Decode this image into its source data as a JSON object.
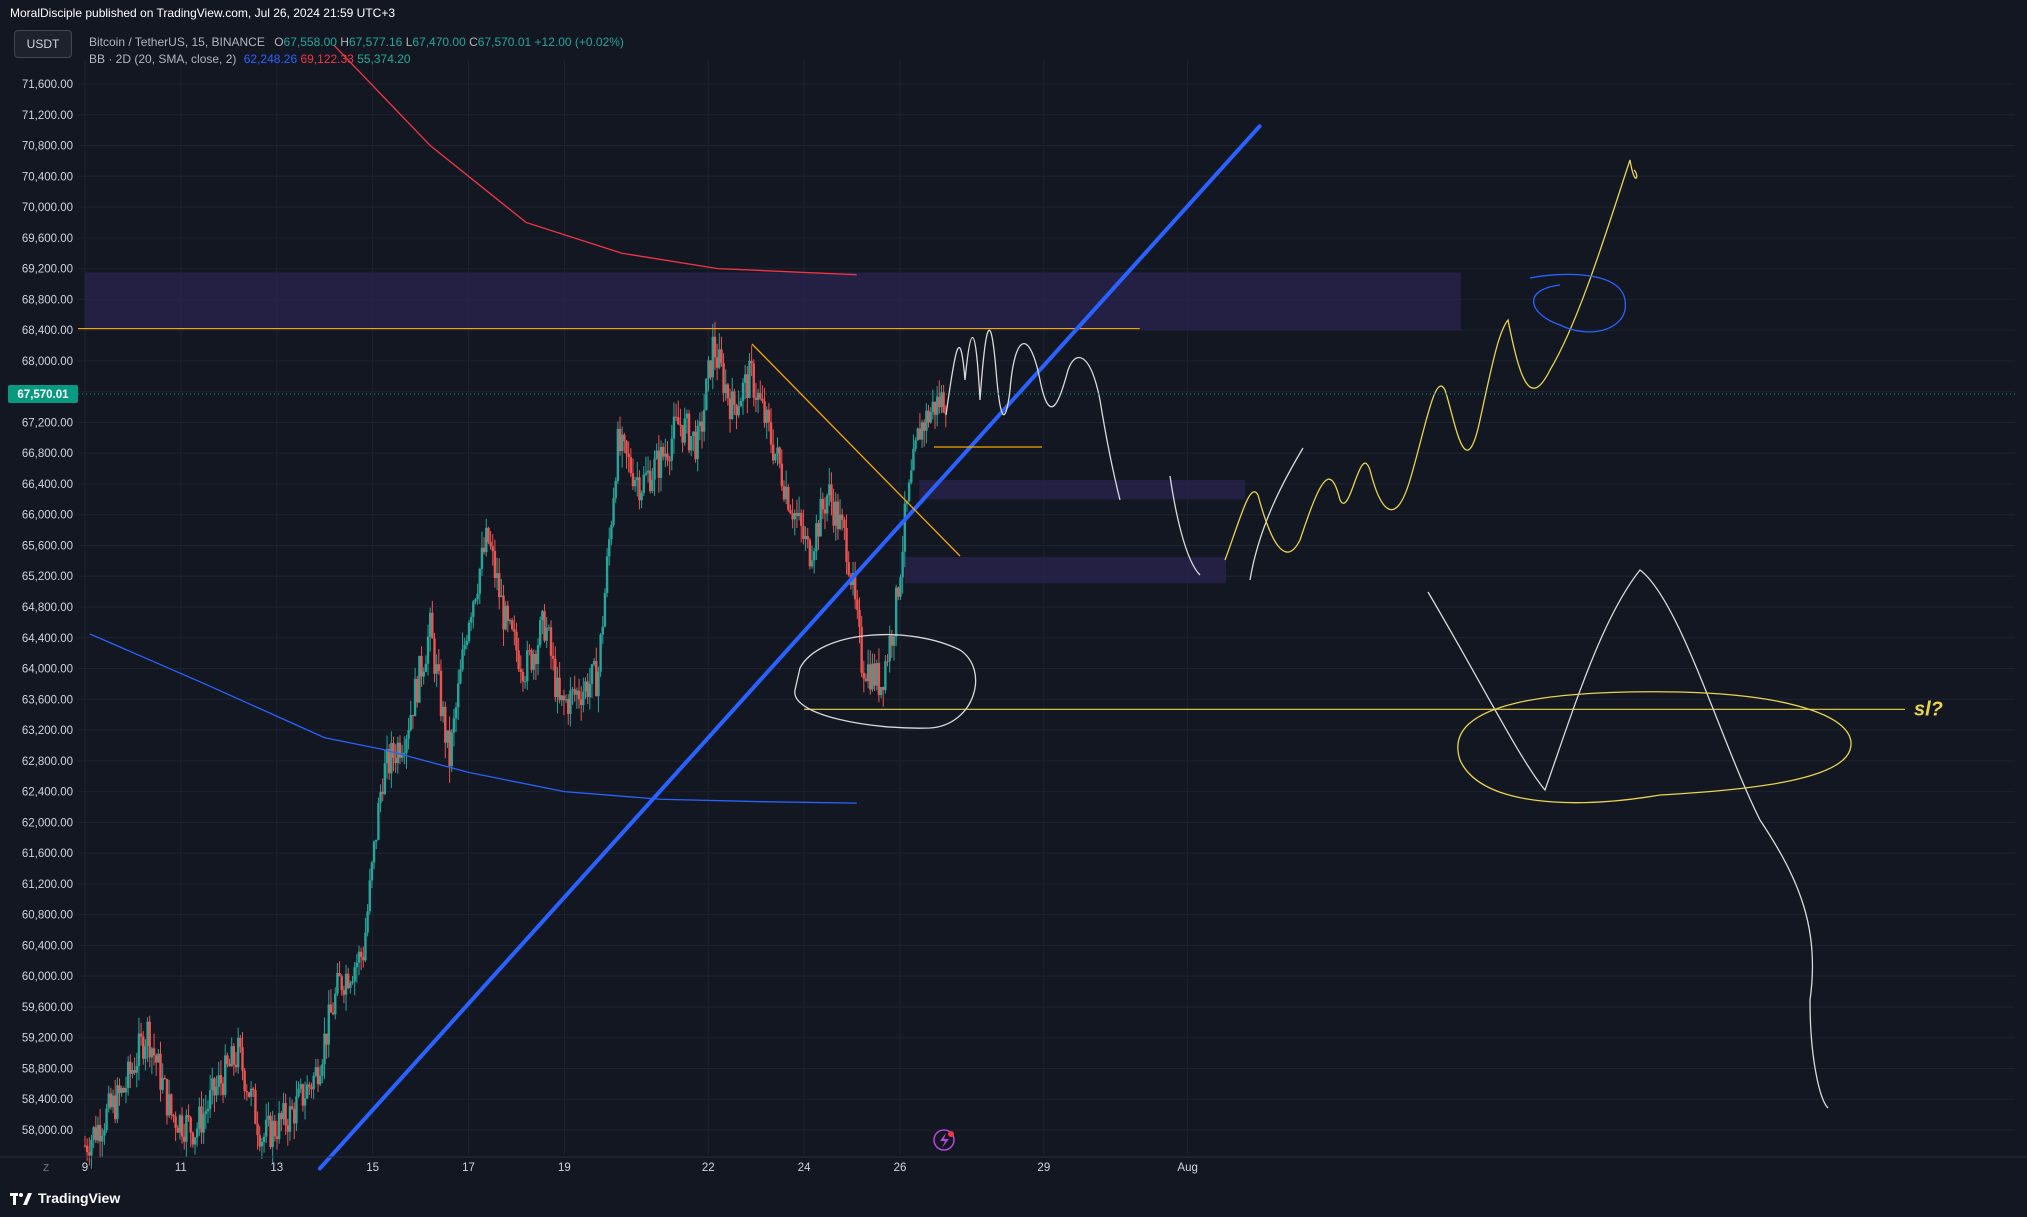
{
  "header": {
    "published": "MoralDisciple published on TradingView.com, Jul 26, 2024 21:59 UTC+3",
    "currency_button": "USDT"
  },
  "legend": {
    "symbol": "Bitcoin / TetherUS, 15, BINANCE",
    "o_label": "O",
    "o_value": "67,558.00",
    "h_label": "H",
    "h_value": "67,577.16",
    "l_label": "L",
    "l_value": "67,470.00",
    "c_label": "C",
    "c_value": "67,570.01",
    "change": "+12.00 (+0.02%)",
    "indicator": "BB · 2D (20, SMA, close, 2)",
    "bb_basis": "62,248.26",
    "bb_upper": "69,122.33",
    "bb_lower": "55,374.20"
  },
  "footer": {
    "brand": "TradingView",
    "z_label": "Z"
  },
  "colors": {
    "background": "#131722",
    "grid": "#1f2330",
    "up": "#26a69a",
    "down": "#ef5350",
    "trendline": "#2962ff",
    "bb_upper": "#f23645",
    "bb_lower": "#2962ff",
    "resistance": "#f7a600",
    "drawing_white": "#d9d9d9",
    "drawing_yellow": "#e8d44d",
    "zone": "#2a2450",
    "last_price": "#089981"
  },
  "chart_data": {
    "type": "candlestick",
    "symbol": "BTCUSDT",
    "timeframe": "15",
    "exchange": "BINANCE",
    "y_ticks": [
      "58,000.00",
      "58,400.00",
      "58,800.00",
      "59,200.00",
      "59,600.00",
      "60,000.00",
      "60,400.00",
      "60,800.00",
      "61,200.00",
      "61,600.00",
      "62,000.00",
      "62,400.00",
      "62,800.00",
      "63,200.00",
      "63,600.00",
      "64,000.00",
      "64,400.00",
      "64,800.00",
      "65,200.00",
      "65,600.00",
      "66,000.00",
      "66,400.00",
      "66,800.00",
      "67,200.00",
      "67,600.00",
      "68,000.00",
      "68,400.00",
      "68,800.00",
      "69,200.00",
      "69,600.00",
      "70,000.00",
      "70,400.00",
      "70,800.00",
      "71,200.00",
      "71,600.00"
    ],
    "ylim": [
      57600,
      71800
    ],
    "x_ticks": [
      {
        "label": "9",
        "day": 9
      },
      {
        "label": "11",
        "day": 11
      },
      {
        "label": "13",
        "day": 13
      },
      {
        "label": "15",
        "day": 15
      },
      {
        "label": "17",
        "day": 17
      },
      {
        "label": "19",
        "day": 19
      },
      {
        "label": "22",
        "day": 22
      },
      {
        "label": "24",
        "day": 24
      },
      {
        "label": "26",
        "day": 26
      },
      {
        "label": "29",
        "day": 29
      },
      {
        "label": "Aug",
        "day": 32
      }
    ],
    "last_price_label": "67,570.01",
    "last_price": 67570.01,
    "price_path": [
      {
        "day": 9.0,
        "price": 57800
      },
      {
        "day": 9.8,
        "price": 58500
      },
      {
        "day": 10.3,
        "price": 59300
      },
      {
        "day": 10.8,
        "price": 58200
      },
      {
        "day": 11.3,
        "price": 58000
      },
      {
        "day": 11.8,
        "price": 58600
      },
      {
        "day": 12.2,
        "price": 59000
      },
      {
        "day": 12.7,
        "price": 57900
      },
      {
        "day": 13.3,
        "price": 58200
      },
      {
        "day": 13.8,
        "price": 58700
      },
      {
        "day": 14.3,
        "price": 59900
      },
      {
        "day": 14.8,
        "price": 60300
      },
      {
        "day": 15.2,
        "price": 62600
      },
      {
        "day": 15.7,
        "price": 63200
      },
      {
        "day": 16.2,
        "price": 64500
      },
      {
        "day": 16.6,
        "price": 62800
      },
      {
        "day": 17.0,
        "price": 64700
      },
      {
        "day": 17.4,
        "price": 65700
      },
      {
        "day": 17.8,
        "price": 64500
      },
      {
        "day": 18.2,
        "price": 64000
      },
      {
        "day": 18.6,
        "price": 64600
      },
      {
        "day": 18.9,
        "price": 63500
      },
      {
        "day": 19.3,
        "price": 63700
      },
      {
        "day": 19.7,
        "price": 63900
      },
      {
        "day": 20.1,
        "price": 66900
      },
      {
        "day": 20.6,
        "price": 66400
      },
      {
        "day": 21.0,
        "price": 66700
      },
      {
        "day": 21.4,
        "price": 67200
      },
      {
        "day": 21.8,
        "price": 66900
      },
      {
        "day": 22.1,
        "price": 68200
      },
      {
        "day": 22.5,
        "price": 67400
      },
      {
        "day": 22.9,
        "price": 67800
      },
      {
        "day": 23.3,
        "price": 67000
      },
      {
        "day": 23.7,
        "price": 66200
      },
      {
        "day": 24.1,
        "price": 65500
      },
      {
        "day": 24.5,
        "price": 66300
      },
      {
        "day": 24.9,
        "price": 65600
      },
      {
        "day": 25.2,
        "price": 64100
      },
      {
        "day": 25.6,
        "price": 63800
      },
      {
        "day": 25.9,
        "price": 64700
      },
      {
        "day": 26.1,
        "price": 65900
      },
      {
        "day": 26.4,
        "price": 67100
      },
      {
        "day": 26.7,
        "price": 67400
      },
      {
        "day": 27.0,
        "price": 67570
      }
    ],
    "bb_upper_path": [
      {
        "day": 14.2,
        "price": 72100
      },
      {
        "day": 16.2,
        "price": 70800
      },
      {
        "day": 18.2,
        "price": 69800
      },
      {
        "day": 20.2,
        "price": 69400
      },
      {
        "day": 22.2,
        "price": 69200
      },
      {
        "day": 25.1,
        "price": 69120
      }
    ],
    "bb_lower_path": [
      {
        "day": 9.1,
        "price": 64450
      },
      {
        "day": 11.5,
        "price": 63800
      },
      {
        "day": 14.0,
        "price": 63100
      },
      {
        "day": 15.2,
        "price": 62950
      },
      {
        "day": 17.0,
        "price": 62650
      },
      {
        "day": 19.0,
        "price": 62400
      },
      {
        "day": 21.0,
        "price": 62300
      },
      {
        "day": 23.0,
        "price": 62270
      },
      {
        "day": 25.1,
        "price": 62250
      }
    ],
    "annotations": {
      "resistance_level": 68420,
      "support_level": 63470,
      "stop_loss_label": "sl?",
      "trendline": [
        {
          "day": 13.9,
          "price": 57500
        },
        {
          "day": 33.5,
          "price": 71050
        }
      ],
      "zones": [
        {
          "from_day": 9.0,
          "to_day": 37.7,
          "low": 68400,
          "high": 69150
        },
        {
          "from_day": 26.4,
          "to_day": 33.2,
          "low": 66200,
          "high": 66450
        },
        {
          "from_day": 26.1,
          "to_day": 32.8,
          "low": 65110,
          "high": 65450
        }
      ]
    }
  }
}
